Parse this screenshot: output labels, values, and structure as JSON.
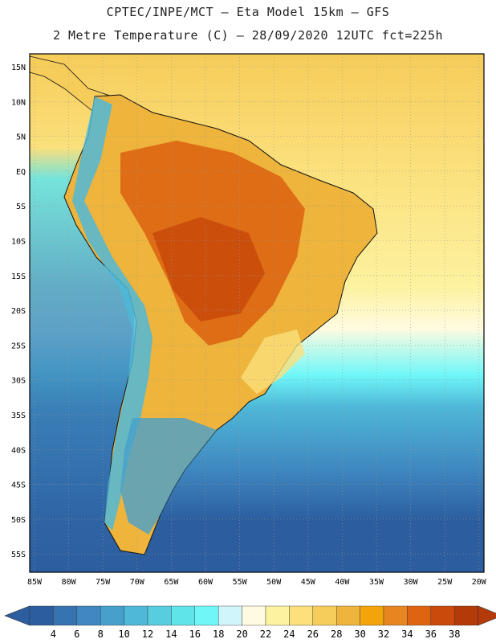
{
  "header": {
    "line1": "CPTEC/INPE/MCT –  Eta Model 15km – GFS",
    "line2": "2 Metre Temperature (C) – 28/09/2020 12UTC fct=225h"
  },
  "map": {
    "lat_labels": [
      "15N",
      "10N",
      "5N",
      "EQ",
      "5S",
      "10S",
      "15S",
      "20S",
      "25S",
      "30S",
      "35S",
      "40S",
      "45S",
      "50S",
      "55S"
    ],
    "lon_labels": [
      "85W",
      "80W",
      "75W",
      "70W",
      "65W",
      "60W",
      "55W",
      "50W",
      "45W",
      "40W",
      "35W",
      "30W",
      "25W",
      "20W"
    ]
  },
  "colorbar": {
    "labels": [
      "4",
      "6",
      "8",
      "10",
      "12",
      "14",
      "16",
      "18",
      "20",
      "22",
      "24",
      "26",
      "28",
      "30",
      "32",
      "34",
      "36",
      "38"
    ],
    "colors": [
      "#2c5e9f",
      "#3674b0",
      "#3f88c0",
      "#47a0cc",
      "#4fb8d8",
      "#59cde0",
      "#5fe4ea",
      "#6ff7f8",
      "#d0f5fb",
      "#fffbe0",
      "#fdf2a0",
      "#fbe07c",
      "#f6cc5a",
      "#eeb43c",
      "#f2a40a",
      "#e78620",
      "#dd6512",
      "#c94a0a",
      "#b53a0a"
    ]
  },
  "legend_lows": "#2c5e9f",
  "legend_high": "#b53a0a"
}
